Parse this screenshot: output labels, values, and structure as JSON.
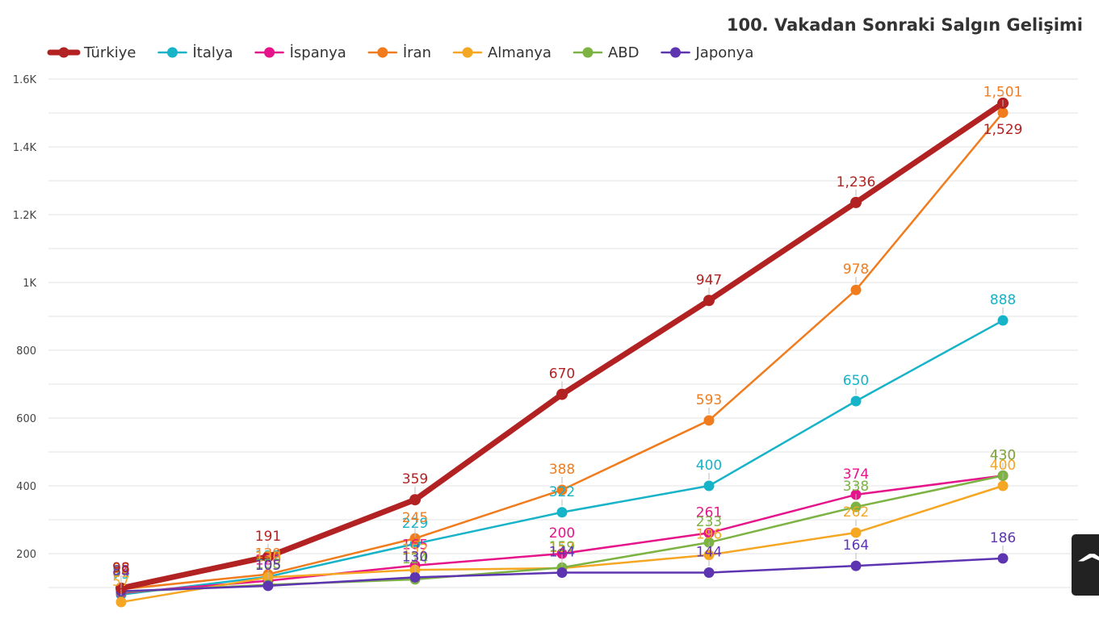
{
  "chart_data": {
    "type": "line",
    "title": "100. Vakadan Sonraki Salgın Gelişimi",
    "x": [
      0,
      1,
      2,
      3,
      4,
      5,
      6
    ],
    "ylim": [
      0,
      1600
    ],
    "yticks": [
      200,
      400,
      600,
      800,
      1000,
      1200,
      1400,
      1600
    ],
    "ytick_labels": [
      "200",
      "400",
      "600",
      "800",
      "1K",
      "1.2K",
      "1.4K",
      "1.6K"
    ],
    "grid": true,
    "legend_position": "top-left",
    "series": [
      {
        "name": "Türkiye",
        "color": "#b22222",
        "values": [
          98,
          191,
          359,
          670,
          947,
          1236,
          1529
        ],
        "labels": [
          "98",
          "191",
          "359",
          "670",
          "947",
          "1,236",
          "1,529"
        ],
        "bold": true
      },
      {
        "name": "İtalya",
        "color": "#17b3c8",
        "values": [
          79,
          132,
          229,
          322,
          400,
          650,
          888
        ],
        "labels": [
          "79",
          "132",
          "229",
          "322",
          "400",
          "650",
          "888"
        ]
      },
      {
        "name": "İspanya",
        "color": "#e6148a",
        "values": [
          84,
          120,
          165,
          200,
          261,
          374,
          430
        ],
        "labels": [
          "84",
          "120",
          "165",
          "200",
          "261",
          "374",
          "430"
        ]
      },
      {
        "name": "İran",
        "color": "#f07c1e",
        "values": [
          95,
          139,
          245,
          388,
          593,
          978,
          1501
        ],
        "labels": [
          "95",
          "139",
          "245",
          "388",
          "593",
          "978",
          "1,501"
        ]
      },
      {
        "name": "Almanya",
        "color": "#f5a623",
        "values": [
          57,
          130,
          152,
          157,
          196,
          262,
          400
        ],
        "labels": [
          "57",
          "130",
          "152",
          "157",
          "196",
          "262",
          "400"
        ]
      },
      {
        "name": "ABD",
        "color": "#7cb342",
        "values": [
          87,
          108,
          124,
          159,
          233,
          338,
          430
        ],
        "labels": [
          "87",
          "108",
          "124",
          "159",
          "233",
          "338",
          "430"
        ]
      },
      {
        "name": "Japonya",
        "color": "#5e35b1",
        "values": [
          89,
          105,
          130,
          144,
          144,
          164,
          186
        ],
        "labels": [
          "89",
          "105",
          "130",
          "144",
          "144",
          "164",
          "186"
        ]
      }
    ]
  },
  "scroll_top": {
    "icon": "chevron-up-icon",
    "glyph": "^"
  }
}
